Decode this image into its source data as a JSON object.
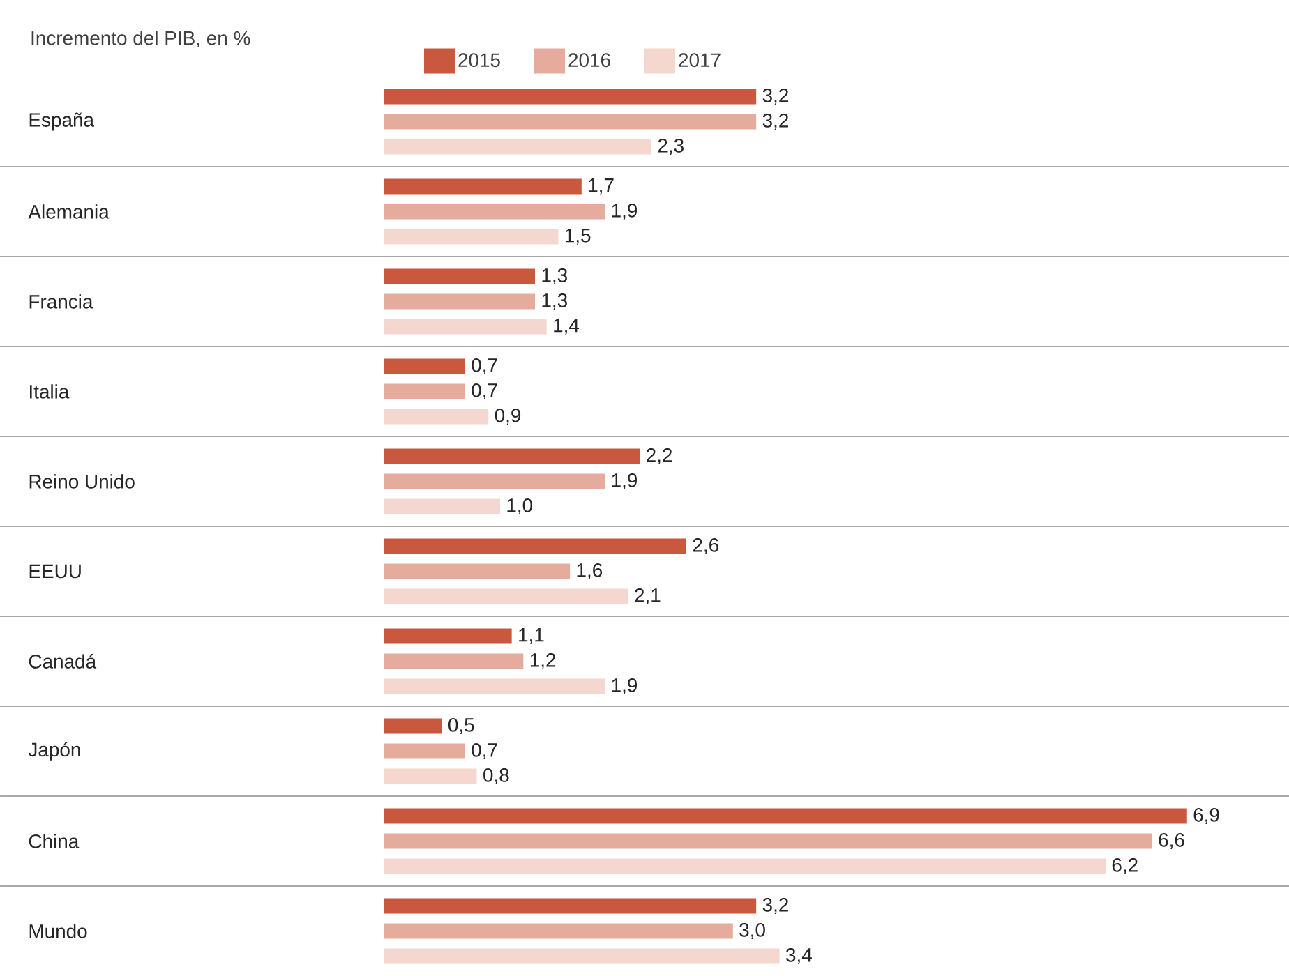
{
  "chart_data": {
    "type": "bar",
    "orientation": "horizontal",
    "title": "Incremento del PIB, en %",
    "legend": "top",
    "categories": [
      "España",
      "Alemania",
      "Francia",
      "Italia",
      "Reino Unido",
      "EEUU",
      "Canadá",
      "Japón",
      "China",
      "Mundo"
    ],
    "series": [
      {
        "name": "2015",
        "color": "#c9583f",
        "values": [
          3.2,
          1.7,
          1.3,
          0.7,
          2.2,
          2.6,
          1.1,
          0.5,
          6.9,
          3.2
        ],
        "value_labels": [
          "3,2",
          "1,7",
          "1,3",
          "0,7",
          "2,2",
          "2,6",
          "1,1",
          "0,5",
          "6,9",
          "3,2"
        ]
      },
      {
        "name": "2016",
        "color": "#e5ab9d",
        "values": [
          3.2,
          1.9,
          1.3,
          0.7,
          1.9,
          1.6,
          1.2,
          0.7,
          6.6,
          3.0
        ],
        "value_labels": [
          "3,2",
          "1,9",
          "1,3",
          "0,7",
          "1,9",
          "1,6",
          "1,2",
          "0,7",
          "6,6",
          "3,0"
        ]
      },
      {
        "name": "2017",
        "color": "#f4d7ce",
        "values": [
          2.3,
          1.5,
          1.4,
          0.9,
          1.0,
          2.1,
          1.9,
          0.8,
          6.2,
          3.4
        ],
        "value_labels": [
          "2,3",
          "1,5",
          "1,4",
          "0,9",
          "1,0",
          "2,1",
          "1,9",
          "0,8",
          "6,2",
          "3,4"
        ]
      }
    ]
  }
}
